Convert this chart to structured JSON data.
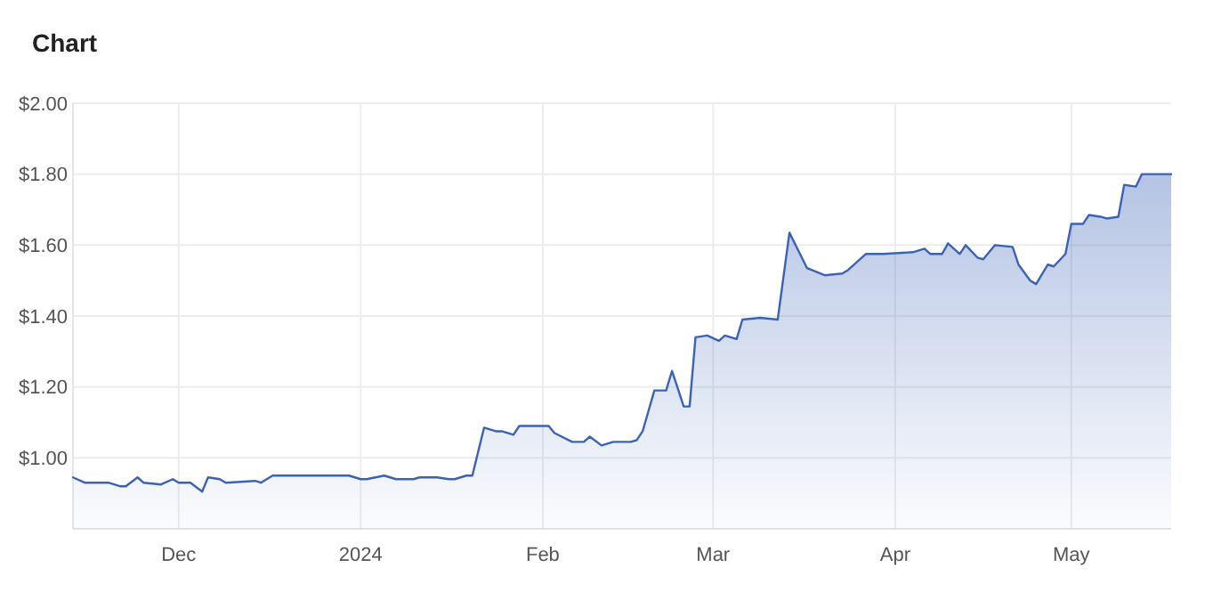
{
  "chart_data": {
    "type": "area",
    "title": "Chart",
    "x": [
      "2023-11-13",
      "2023-11-15",
      "2023-11-19",
      "2023-11-21",
      "2023-11-22",
      "2023-11-24",
      "2023-11-25",
      "2023-11-28",
      "2023-11-30",
      "2023-12-01",
      "2023-12-03",
      "2023-12-05",
      "2023-12-06",
      "2023-12-08",
      "2023-12-09",
      "2023-12-14",
      "2023-12-15",
      "2023-12-17",
      "2023-12-30",
      "2024-01-01",
      "2024-01-02",
      "2024-01-05",
      "2024-01-07",
      "2024-01-10",
      "2024-01-11",
      "2024-01-14",
      "2024-01-16",
      "2024-01-17",
      "2024-01-19",
      "2024-01-20",
      "2024-01-22",
      "2024-01-24",
      "2024-01-25",
      "2024-01-27",
      "2024-01-28",
      "2024-02-02",
      "2024-02-03",
      "2024-02-06",
      "2024-02-08",
      "2024-02-09",
      "2024-02-11",
      "2024-02-13",
      "2024-02-16",
      "2024-02-17",
      "2024-02-18",
      "2024-02-20",
      "2024-02-22",
      "2024-02-23",
      "2024-02-25",
      "2024-02-26",
      "2024-02-27",
      "2024-02-29",
      "2024-03-02",
      "2024-03-03",
      "2024-03-05",
      "2024-03-06",
      "2024-03-09",
      "2024-03-12",
      "2024-03-14",
      "2024-03-17",
      "2024-03-20",
      "2024-03-23",
      "2024-03-24",
      "2024-03-27",
      "2024-03-30",
      "2024-04-04",
      "2024-04-06",
      "2024-04-07",
      "2024-04-09",
      "2024-04-10",
      "2024-04-12",
      "2024-04-13",
      "2024-04-15",
      "2024-04-16",
      "2024-04-18",
      "2024-04-21",
      "2024-04-22",
      "2024-04-24",
      "2024-04-25",
      "2024-04-27",
      "2024-04-28",
      "2024-04-30",
      "2024-05-01",
      "2024-05-03",
      "2024-05-04",
      "2024-05-06",
      "2024-05-07",
      "2024-05-09",
      "2024-05-10",
      "2024-05-12",
      "2024-05-13",
      "2024-05-18"
    ],
    "series": [
      {
        "color": "#3a63b8",
        "values": [
          0.945,
          0.93,
          0.93,
          0.92,
          0.92,
          0.945,
          0.93,
          0.925,
          0.94,
          0.93,
          0.93,
          0.905,
          0.945,
          0.94,
          0.93,
          0.935,
          0.93,
          0.95,
          0.95,
          0.94,
          0.94,
          0.95,
          0.94,
          0.94,
          0.945,
          0.945,
          0.94,
          0.94,
          0.95,
          0.95,
          1.085,
          1.075,
          1.075,
          1.065,
          1.09,
          1.09,
          1.07,
          1.045,
          1.045,
          1.06,
          1.035,
          1.045,
          1.045,
          1.05,
          1.075,
          1.19,
          1.19,
          1.245,
          1.145,
          1.145,
          1.34,
          1.345,
          1.33,
          1.345,
          1.335,
          1.39,
          1.395,
          1.39,
          1.635,
          1.535,
          1.515,
          1.52,
          1.53,
          1.575,
          1.575,
          1.58,
          1.59,
          1.575,
          1.575,
          1.605,
          1.575,
          1.6,
          1.565,
          1.56,
          1.6,
          1.595,
          1.545,
          1.5,
          1.49,
          1.545,
          1.54,
          1.575,
          1.66,
          1.66,
          1.685,
          1.68,
          1.675,
          1.68,
          1.77,
          1.765,
          1.8,
          1.8
        ]
      }
    ],
    "xlim": [
      "2023-11-13",
      "2024-05-18"
    ],
    "xticks": [
      {
        "value": "2023-12-01",
        "label": "Dec"
      },
      {
        "value": "2024-01-01",
        "label": "2024"
      },
      {
        "value": "2024-02-01",
        "label": "Feb"
      },
      {
        "value": "2024-03-01",
        "label": "Mar"
      },
      {
        "value": "2024-04-01",
        "label": "Apr"
      },
      {
        "value": "2024-05-01",
        "label": "May"
      }
    ],
    "ylim": [
      0.8,
      2.0
    ],
    "yticks": [
      {
        "value": 1.0,
        "label": "$1.00"
      },
      {
        "value": 1.2,
        "label": "$1.20"
      },
      {
        "value": 1.4,
        "label": "$1.40"
      },
      {
        "value": 1.6,
        "label": "$1.60"
      },
      {
        "value": 1.8,
        "label": "$1.80"
      },
      {
        "value": 2.0,
        "label": "$2.00"
      }
    ],
    "grid": true
  }
}
